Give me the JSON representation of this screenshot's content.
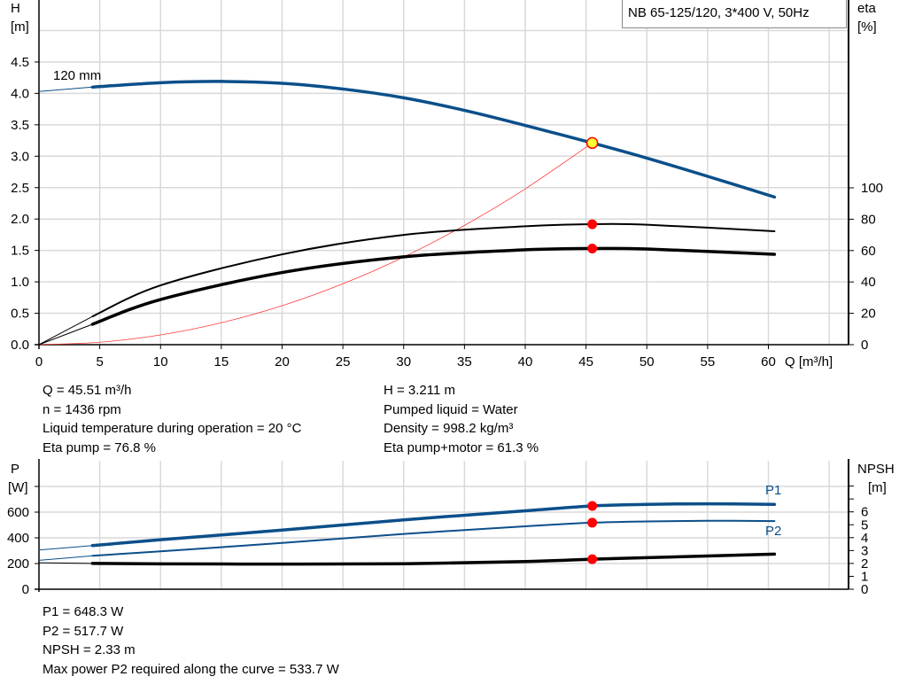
{
  "title": "NB 65-125/120, 3*400 V, 50Hz",
  "colors": {
    "pump_curve": "#0b4f8a",
    "efficiency": "#000000",
    "system_curve": "#ff3b3b",
    "duty_point": "#ff0000",
    "duty_point_head": "#ffff33",
    "grid": "#d9d9d9"
  },
  "chart_data": [
    {
      "type": "line",
      "xlabel": "Q [m³/h]",
      "x_ticks": [
        "0",
        "5",
        "10",
        "15",
        "20",
        "25",
        "30",
        "35",
        "40",
        "45",
        "50",
        "55",
        "60"
      ],
      "xlim": [
        0,
        65
      ],
      "ylabel": "H",
      "ylabel_unit": "[m]",
      "y_ticks": [
        "0.0",
        "0.5",
        "1.0",
        "1.5",
        "2.0",
        "2.5",
        "3.0",
        "3.5",
        "4.0",
        "4.5"
      ],
      "ylim": [
        0,
        5.0
      ],
      "y2label": "eta",
      "y2label_unit": "[%]",
      "y2_ticks": [
        "0",
        "20",
        "40",
        "60",
        "80",
        "100"
      ],
      "y2lim": [
        0,
        100
      ],
      "grid": true,
      "min_flow": 4.4,
      "series": [
        {
          "name": "120 mm",
          "axis": "H",
          "x": [
            0,
            4.4,
            10,
            15,
            20,
            25,
            30,
            35,
            40,
            45.51,
            50,
            55,
            60.5
          ],
          "y": [
            4.03,
            4.1,
            4.17,
            4.19,
            4.16,
            4.07,
            3.93,
            3.73,
            3.49,
            3.211,
            2.97,
            2.68,
            2.35
          ]
        },
        {
          "axis": "eta",
          "x": [
            0,
            4.4,
            10,
            20,
            30,
            40,
            45.51,
            50,
            60.5
          ],
          "y": [
            0,
            18,
            37.8,
            57.6,
            70,
            75.5,
            76.8,
            76.5,
            72.3
          ]
        },
        {
          "axis": "eta",
          "x": [
            0,
            4.4,
            10,
            20,
            30,
            40,
            45.51,
            50,
            60.5
          ],
          "y": [
            0,
            13,
            28.8,
            46,
            56,
            60.5,
            61.3,
            61,
            57.6
          ]
        },
        {
          "axis": "H",
          "type": "system",
          "x": [
            0,
            5,
            10,
            15,
            20,
            25,
            30,
            35,
            40,
            45.51
          ],
          "y": [
            0,
            0.039,
            0.155,
            0.349,
            0.62,
            0.969,
            1.395,
            1.899,
            2.48,
            3.211
          ]
        }
      ],
      "duty_point": {
        "Q": 45.51,
        "H": 3.211,
        "eta_pump": 76.8,
        "eta_pump_motor": 61.3
      }
    },
    {
      "type": "line",
      "ylabel": "P",
      "ylabel_unit": "[W]",
      "y_ticks": [
        "0",
        "200",
        "400",
        "600"
      ],
      "ylim": [
        0,
        1000
      ],
      "y2label": "NPSH",
      "y2label_unit": "[m]",
      "y2_ticks": [
        "0",
        "1",
        "2",
        "3",
        "4",
        "5",
        "6"
      ],
      "y2lim": [
        0,
        10
      ],
      "xlim": [
        0,
        65
      ],
      "grid": true,
      "series": [
        {
          "name": "P1",
          "axis": "P",
          "x": [
            0,
            4.4,
            10,
            20,
            30,
            40,
            45.51,
            50,
            55,
            60.5
          ],
          "y": [
            305,
            340,
            385,
            460,
            540,
            610,
            648.3,
            660,
            665,
            660
          ]
        },
        {
          "name": "P2",
          "axis": "P",
          "x": [
            0,
            4.4,
            10,
            20,
            30,
            40,
            45.51,
            50,
            55,
            60.5
          ],
          "y": [
            225,
            260,
            295,
            360,
            430,
            490,
            517.7,
            528,
            533,
            530
          ]
        },
        {
          "axis": "NPSH",
          "x": [
            0,
            4.4,
            10,
            20,
            30,
            40,
            45.51,
            50,
            60.5
          ],
          "y": [
            2.05,
            2.0,
            1.97,
            1.95,
            1.98,
            2.15,
            2.33,
            2.45,
            2.72
          ]
        }
      ]
    }
  ],
  "info_top": {
    "left": [
      "Q = 45.51 m³/h",
      "n = 1436 rpm",
      "Liquid temperature during operation = 20 °C",
      "Eta pump = 76.8 %"
    ],
    "right": [
      "H = 3.211 m",
      "Pumped liquid = Water",
      "Density = 998.2 kg/m³",
      "Eta pump+motor = 61.3 %"
    ]
  },
  "info_bottom": [
    "P1 = 648.3 W",
    "P2 = 517.7 W",
    "NPSH = 2.33 m",
    "Max power P2 required along the curve = 533.7 W"
  ]
}
